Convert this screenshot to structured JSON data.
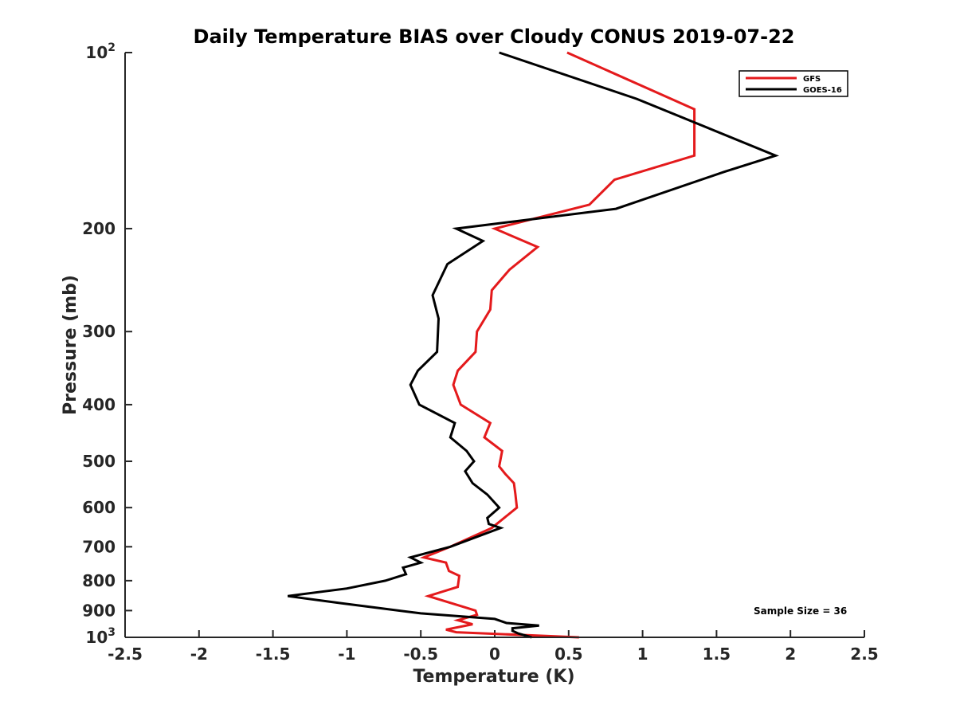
{
  "chart_data": {
    "type": "line",
    "title": "Daily Temperature BIAS over Cloudy CONUS 2019-07-22",
    "xlabel": "Temperature (K)",
    "ylabel": "Pressure (mb)",
    "xlim": [
      -2.5,
      2.5
    ],
    "ylim": [
      100,
      1000
    ],
    "y_scale": "log",
    "y_reversed": true,
    "grid": false,
    "legend_position": "top-right",
    "x_ticks": [
      "-2.5",
      "-2",
      "-1.5",
      "-1",
      "-0.5",
      "0",
      "0.5",
      "1",
      "1.5",
      "2",
      "2.5"
    ],
    "y_ticks": [
      {
        "value": 100,
        "label": "10",
        "sup": "2"
      },
      {
        "value": 200,
        "label": "200",
        "sup": ""
      },
      {
        "value": 300,
        "label": "300",
        "sup": ""
      },
      {
        "value": 400,
        "label": "400",
        "sup": ""
      },
      {
        "value": 500,
        "label": "500",
        "sup": ""
      },
      {
        "value": 600,
        "label": "600",
        "sup": ""
      },
      {
        "value": 700,
        "label": "700",
        "sup": ""
      },
      {
        "value": 800,
        "label": "800",
        "sup": ""
      },
      {
        "value": 900,
        "label": "900",
        "sup": ""
      },
      {
        "value": 1000,
        "label": "10",
        "sup": "3"
      }
    ],
    "series": [
      {
        "name": "GFS",
        "color": "#e41a1c",
        "points": [
          [
            0.49,
            100
          ],
          [
            1.35,
            125
          ],
          [
            1.35,
            150
          ],
          [
            0.81,
            165
          ],
          [
            0.64,
            182
          ],
          [
            0.0,
            200
          ],
          [
            0.29,
            215
          ],
          [
            0.1,
            235
          ],
          [
            -0.02,
            255
          ],
          [
            -0.03,
            275
          ],
          [
            -0.12,
            300
          ],
          [
            -0.13,
            325
          ],
          [
            -0.25,
            350
          ],
          [
            -0.28,
            370
          ],
          [
            -0.23,
            400
          ],
          [
            -0.03,
            430
          ],
          [
            -0.07,
            455
          ],
          [
            0.05,
            480
          ],
          [
            0.03,
            510
          ],
          [
            0.07,
            525
          ],
          [
            0.13,
            545
          ],
          [
            0.14,
            570
          ],
          [
            0.15,
            600
          ],
          [
            -0.02,
            650
          ],
          [
            -0.3,
            700
          ],
          [
            -0.48,
            730
          ],
          [
            -0.33,
            745
          ],
          [
            -0.31,
            770
          ],
          [
            -0.24,
            785
          ],
          [
            -0.25,
            820
          ],
          [
            -0.45,
            850
          ],
          [
            -0.13,
            900
          ],
          [
            -0.12,
            915
          ],
          [
            -0.25,
            935
          ],
          [
            -0.15,
            950
          ],
          [
            -0.33,
            970
          ],
          [
            -0.26,
            980
          ],
          [
            0.57,
            1000
          ]
        ]
      },
      {
        "name": "GOES-16",
        "color": "#000000",
        "points": [
          [
            0.03,
            100
          ],
          [
            0.96,
            120
          ],
          [
            1.9,
            150
          ],
          [
            1.55,
            160
          ],
          [
            0.82,
            185
          ],
          [
            -0.26,
            200
          ],
          [
            -0.08,
            210
          ],
          [
            -0.32,
            230
          ],
          [
            -0.42,
            260
          ],
          [
            -0.38,
            285
          ],
          [
            -0.39,
            325
          ],
          [
            -0.52,
            350
          ],
          [
            -0.57,
            370
          ],
          [
            -0.51,
            400
          ],
          [
            -0.27,
            430
          ],
          [
            -0.3,
            455
          ],
          [
            -0.19,
            480
          ],
          [
            -0.14,
            500
          ],
          [
            -0.2,
            520
          ],
          [
            -0.15,
            545
          ],
          [
            -0.05,
            570
          ],
          [
            0.03,
            600
          ],
          [
            -0.05,
            625
          ],
          [
            -0.04,
            640
          ],
          [
            0.04,
            650
          ],
          [
            -0.3,
            700
          ],
          [
            -0.57,
            730
          ],
          [
            -0.5,
            745
          ],
          [
            -0.62,
            760
          ],
          [
            -0.6,
            780
          ],
          [
            -0.74,
            800
          ],
          [
            -1.0,
            825
          ],
          [
            -1.4,
            850
          ],
          [
            -1.03,
            875
          ],
          [
            -0.5,
            910
          ],
          [
            0.0,
            930
          ],
          [
            0.08,
            945
          ],
          [
            0.3,
            955
          ],
          [
            0.12,
            965
          ],
          [
            0.12,
            975
          ],
          [
            0.16,
            985
          ],
          [
            0.25,
            1000
          ]
        ]
      }
    ],
    "annotations": [
      "Sample Size = 36"
    ]
  }
}
